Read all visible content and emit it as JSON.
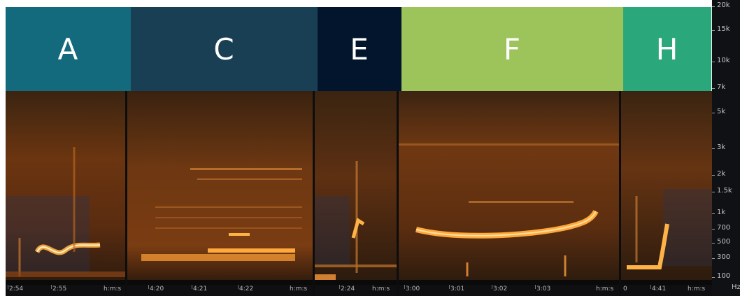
{
  "panels": [
    {
      "id": "a",
      "label": "A",
      "color": "#136a7c",
      "time_ticks": [
        "2:54",
        "2:55",
        "h:m:s"
      ]
    },
    {
      "id": "c",
      "label": "C",
      "color": "#193f54",
      "time_ticks": [
        "4:20",
        "4:21",
        "4:22",
        "h:m:s"
      ]
    },
    {
      "id": "e",
      "label": "E",
      "color": "#02152c",
      "time_ticks": [
        "2:24",
        "h:m:s"
      ]
    },
    {
      "id": "f",
      "label": "F",
      "color": "#9dc35b",
      "time_ticks": [
        "3:00",
        "3:01",
        "3:02",
        "3:03",
        "h:m:s"
      ]
    },
    {
      "id": "h",
      "label": "H",
      "color": "#2aa77b",
      "time_ticks": [
        "0",
        "4:41",
        "h:m:s"
      ]
    }
  ],
  "frequency_axis": {
    "labels": [
      "20k",
      "15k",
      "10k",
      "7k",
      "5k",
      "3k",
      "2k",
      "1.5k",
      "1k",
      "700",
      "500",
      "300",
      "100"
    ],
    "unit": "Hz"
  },
  "colors": {
    "spectrogram_bg": "#1a1208",
    "spectrogram_mid": "#7a3a10",
    "spectrogram_hot": "#ffb347",
    "axis_bg": "#0f1114"
  }
}
